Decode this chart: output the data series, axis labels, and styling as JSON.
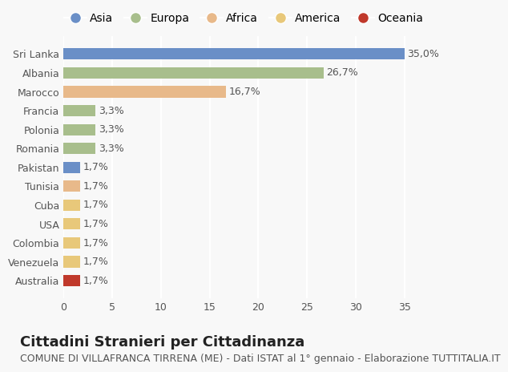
{
  "countries": [
    "Sri Lanka",
    "Albania",
    "Marocco",
    "Francia",
    "Polonia",
    "Romania",
    "Pakistan",
    "Tunisia",
    "Cuba",
    "USA",
    "Colombia",
    "Venezuela",
    "Australia"
  ],
  "values": [
    35.0,
    26.7,
    16.7,
    3.3,
    3.3,
    3.3,
    1.7,
    1.7,
    1.7,
    1.7,
    1.7,
    1.7,
    1.7
  ],
  "labels": [
    "35,0%",
    "26,7%",
    "16,7%",
    "3,3%",
    "3,3%",
    "3,3%",
    "1,7%",
    "1,7%",
    "1,7%",
    "1,7%",
    "1,7%",
    "1,7%",
    "1,7%"
  ],
  "bar_colors": [
    "#6a8fc7",
    "#a8be8c",
    "#e8b98a",
    "#a8be8c",
    "#a8be8c",
    "#a8be8c",
    "#6a8fc7",
    "#e8b98a",
    "#e8c87a",
    "#e8c87a",
    "#e8c87a",
    "#e8c87a",
    "#c0392b"
  ],
  "continent_colors": {
    "Asia": "#6a8fc7",
    "Europa": "#a8be8c",
    "Africa": "#e8b98a",
    "America": "#e8c87a",
    "Oceania": "#c0392b"
  },
  "legend_labels": [
    "Asia",
    "Europa",
    "Africa",
    "America",
    "Oceania"
  ],
  "xlim": [
    0,
    37
  ],
  "xticks": [
    0,
    5,
    10,
    15,
    20,
    25,
    30,
    35
  ],
  "title": "Cittadini Stranieri per Cittadinanza",
  "subtitle": "COMUNE DI VILLAFRANCA TIRRENA (ME) - Dati ISTAT al 1° gennaio - Elaborazione TUTTITALIA.IT",
  "background_color": "#f8f8f8",
  "grid_color": "#ffffff",
  "bar_height": 0.6,
  "title_fontsize": 13,
  "subtitle_fontsize": 9,
  "label_fontsize": 9,
  "tick_fontsize": 9
}
